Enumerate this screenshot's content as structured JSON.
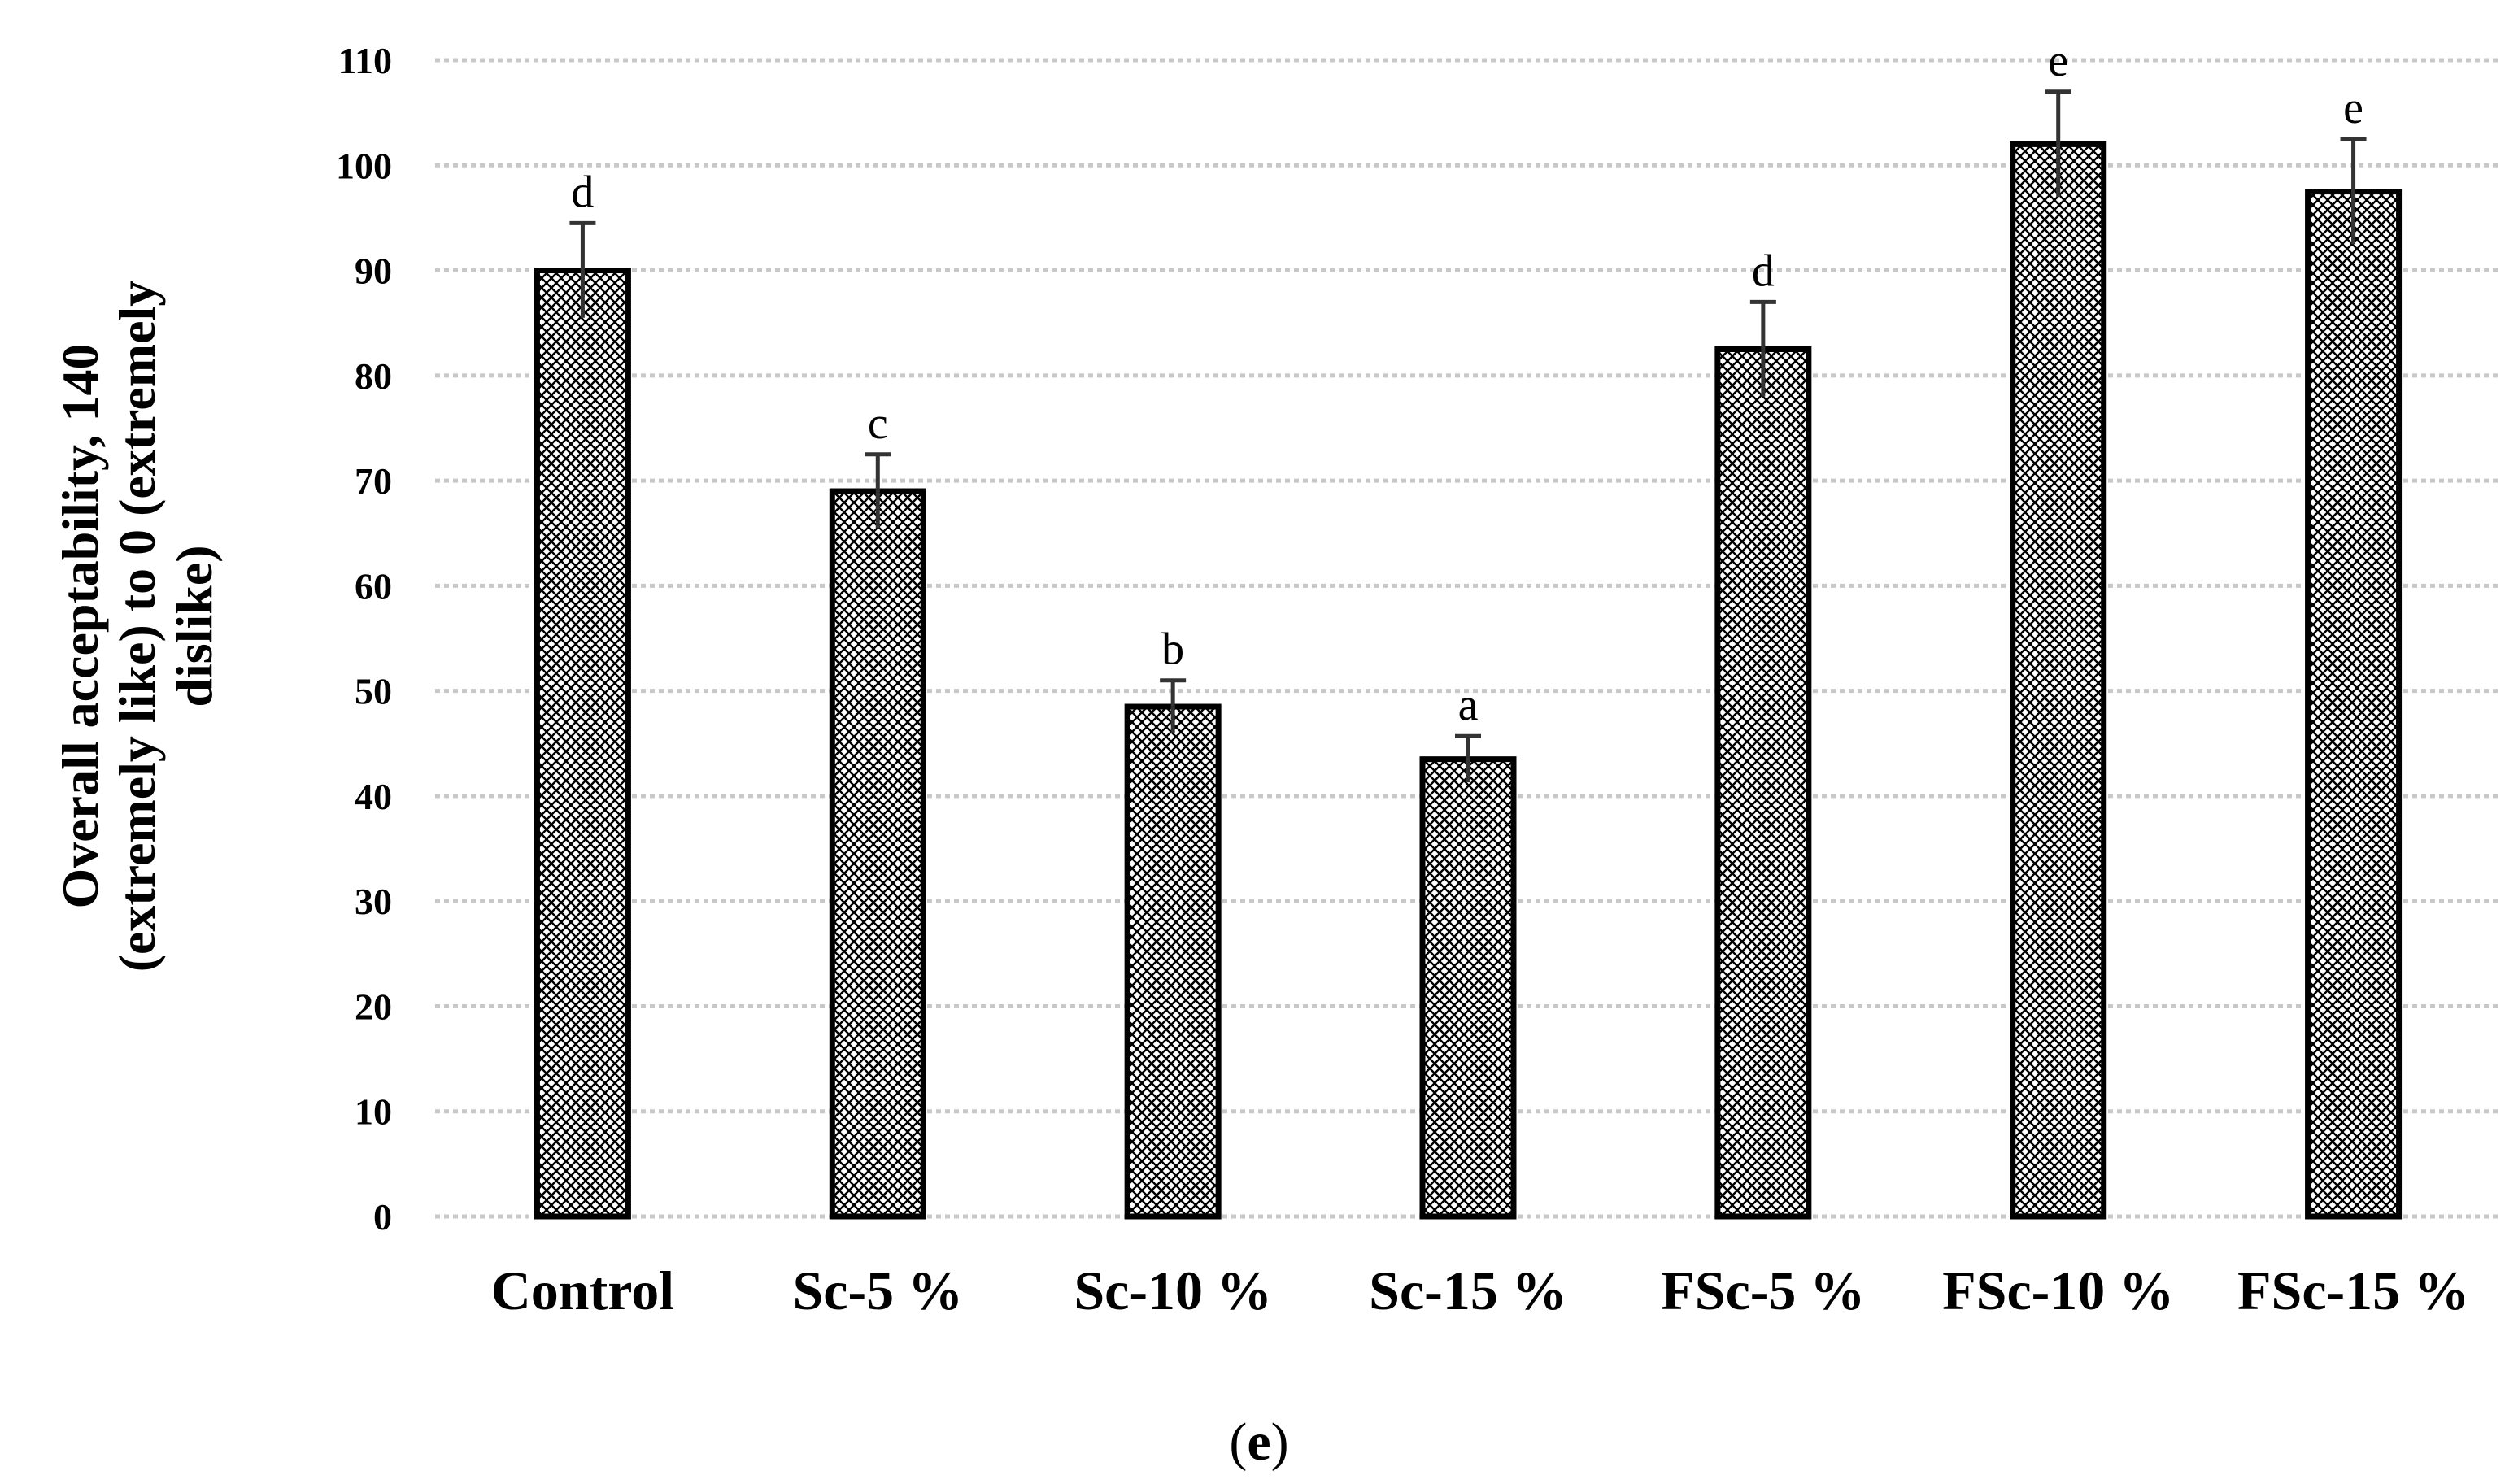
{
  "chart_data": {
    "type": "bar",
    "categories": [
      "Control",
      "Sc-5 %",
      "Sc-10 %",
      "Sc-15 %",
      "FSc-5 %",
      "FSc-10 %",
      "FSc-15 %"
    ],
    "values": [
      90,
      69,
      48.5,
      43.5,
      82.5,
      102,
      97.5
    ],
    "errors": [
      4.5,
      3.5,
      2.5,
      2.2,
      4.5,
      5,
      5
    ],
    "significance": [
      "d",
      "c",
      "b",
      "a",
      "d",
      "e",
      "e"
    ],
    "title": "",
    "xlabel": "",
    "ylabel_lines": [
      "Overall acceptability, 140",
      "(extremely like) to 0 (extremely",
      "dislike)"
    ],
    "ylim": [
      0,
      110
    ],
    "yticks": [
      0,
      10,
      20,
      30,
      40,
      50,
      60,
      70,
      80,
      90,
      100,
      110
    ],
    "grid": true,
    "legend": "none",
    "caption_open": "(",
    "caption_letter": "e",
    "caption_close": ")",
    "bar_pattern": "crosshatch"
  }
}
